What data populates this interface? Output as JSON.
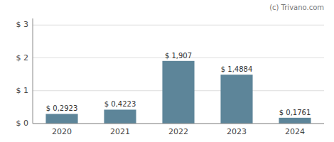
{
  "chart_data": {
    "type": "bar",
    "categories": [
      "2020",
      "2021",
      "2022",
      "2023",
      "2024"
    ],
    "values": [
      0.2923,
      0.4223,
      1.907,
      1.4884,
      0.1761
    ],
    "value_labels": [
      "$ 0,2923",
      "$ 0,4223",
      "$ 1,907",
      "$ 1,4884",
      "$ 0,1761"
    ],
    "color": "#5d8599",
    "ylim": [
      0,
      3.2
    ],
    "yticks": [
      {
        "value": 0,
        "label": "$ 0"
      },
      {
        "value": 1,
        "label": "$ 1"
      },
      {
        "value": 2,
        "label": "$ 2"
      },
      {
        "value": 3,
        "label": "$ 3"
      }
    ],
    "grid": true,
    "data_labels": true,
    "annotations": [
      "(c) Trivano.com"
    ]
  }
}
